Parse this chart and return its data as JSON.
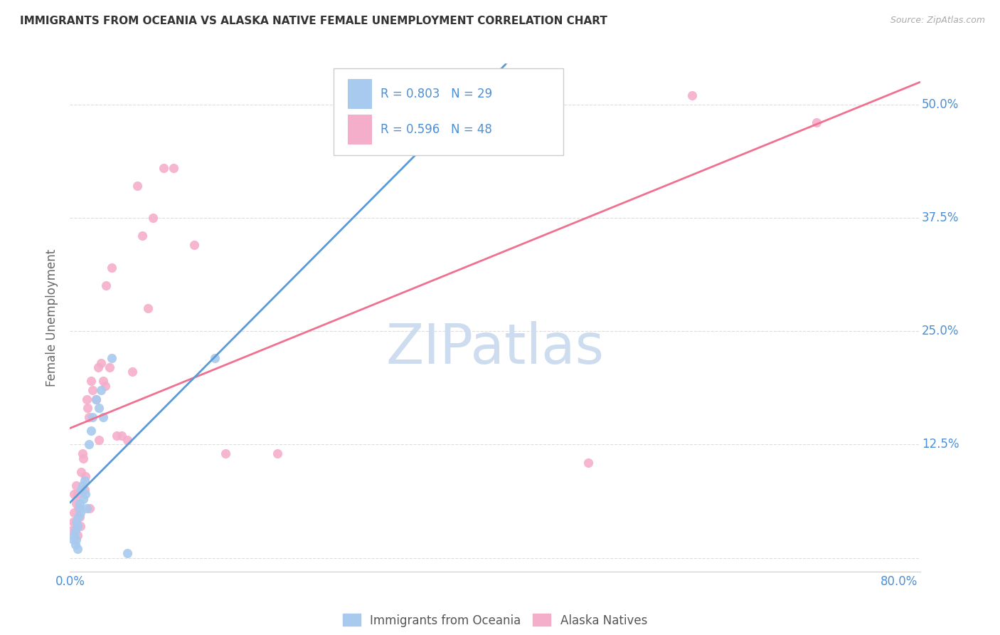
{
  "title": "IMMIGRANTS FROM OCEANIA VS ALASKA NATIVE FEMALE UNEMPLOYMENT CORRELATION CHART",
  "source": "Source: ZipAtlas.com",
  "ylabel": "Female Unemployment",
  "xlim": [
    0.0,
    0.82
  ],
  "ylim": [
    -0.015,
    0.545
  ],
  "legend_label1": "Immigrants from Oceania",
  "legend_label2": "Alaska Natives",
  "r1": "0.803",
  "n1": "29",
  "r2": "0.596",
  "n2": "48",
  "color_blue": "#A8CAEE",
  "color_pink": "#F5AECA",
  "color_blue_line": "#5B9BD5",
  "color_pink_line": "#F07090",
  "color_blue_text": "#4A90D9",
  "blue_scatter_x": [
    0.003,
    0.004,
    0.005,
    0.005,
    0.006,
    0.006,
    0.007,
    0.007,
    0.008,
    0.009,
    0.009,
    0.01,
    0.011,
    0.012,
    0.013,
    0.014,
    0.015,
    0.016,
    0.018,
    0.02,
    0.022,
    0.025,
    0.028,
    0.03,
    0.032,
    0.04,
    0.055,
    0.14,
    0.38
  ],
  "blue_scatter_y": [
    0.02,
    0.025,
    0.015,
    0.03,
    0.02,
    0.04,
    0.01,
    0.035,
    0.045,
    0.055,
    0.06,
    0.05,
    0.075,
    0.08,
    0.065,
    0.085,
    0.07,
    0.055,
    0.125,
    0.14,
    0.155,
    0.175,
    0.165,
    0.185,
    0.155,
    0.22,
    0.005,
    0.22,
    0.48
  ],
  "pink_scatter_x": [
    0.002,
    0.003,
    0.004,
    0.004,
    0.005,
    0.006,
    0.006,
    0.007,
    0.007,
    0.008,
    0.009,
    0.01,
    0.011,
    0.012,
    0.013,
    0.014,
    0.015,
    0.016,
    0.017,
    0.018,
    0.019,
    0.02,
    0.022,
    0.025,
    0.027,
    0.028,
    0.03,
    0.032,
    0.034,
    0.035,
    0.038,
    0.04,
    0.045,
    0.05,
    0.055,
    0.06,
    0.065,
    0.07,
    0.075,
    0.08,
    0.09,
    0.1,
    0.12,
    0.15,
    0.2,
    0.5,
    0.6,
    0.72
  ],
  "pink_scatter_y": [
    0.03,
    0.04,
    0.05,
    0.07,
    0.03,
    0.06,
    0.08,
    0.025,
    0.07,
    0.055,
    0.045,
    0.035,
    0.095,
    0.115,
    0.11,
    0.075,
    0.09,
    0.175,
    0.165,
    0.155,
    0.055,
    0.195,
    0.185,
    0.175,
    0.21,
    0.13,
    0.215,
    0.195,
    0.19,
    0.3,
    0.21,
    0.32,
    0.135,
    0.135,
    0.13,
    0.205,
    0.41,
    0.355,
    0.275,
    0.375,
    0.43,
    0.43,
    0.345,
    0.115,
    0.115,
    0.105,
    0.51,
    0.48
  ],
  "background_color": "#ffffff",
  "grid_color": "#dddddd",
  "watermark_text": "ZIPatlas",
  "watermark_color": "#cddcee"
}
